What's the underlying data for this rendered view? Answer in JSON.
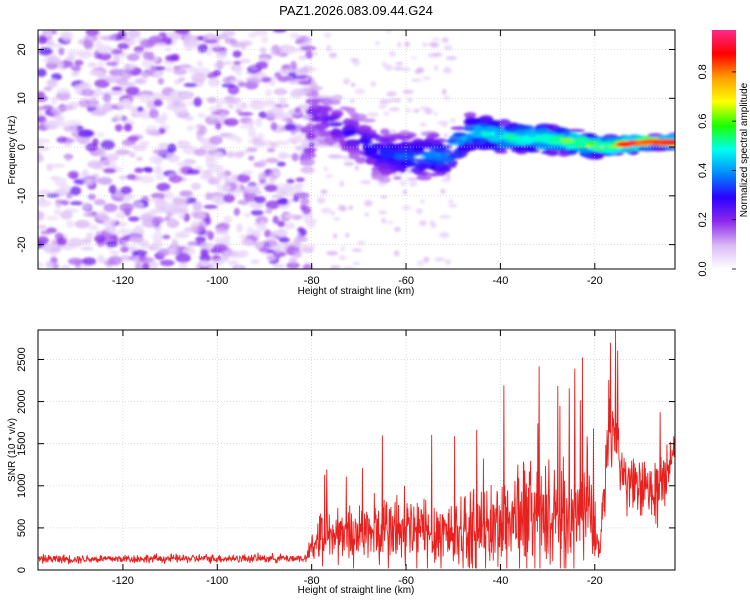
{
  "title": "PAZ1.2026.083.09.44.G24",
  "chart_data": [
    {
      "type": "heatmap",
      "xlabel": "Height of straight line (km)",
      "ylabel": "Frequency (Hz)",
      "xlim": [
        -138,
        -3
      ],
      "ylim": [
        -25,
        24
      ],
      "xticks": [
        -120,
        -100,
        -80,
        -60,
        -40,
        -20
      ],
      "xtick_labels": [
        "-120",
        "-100",
        "-80",
        "-60",
        "-40",
        "-20"
      ],
      "yticks": [
        -20,
        -10,
        0,
        10,
        20
      ],
      "ytick_labels": [
        "-20",
        "-10",
        "0",
        "10",
        "20"
      ],
      "colorbar": {
        "label": "Normalized spectral amplitude",
        "range": [
          0,
          0.97
        ],
        "ticks": [
          0.0,
          0.2,
          0.4,
          0.6,
          0.8
        ],
        "tick_labels": [
          "0.0",
          "0.2",
          "0.4",
          "0.6",
          "0.8"
        ],
        "colormap": [
          "#ffffff",
          "#d9b8f5",
          "#8c28ec",
          "#2a00ff",
          "#008bff",
          "#00ffee",
          "#1bff00",
          "#ffff00",
          "#ff9f00",
          "#ff0000",
          "#ff2a8a"
        ]
      },
      "signal_track": [
        {
          "x": -80,
          "freq": 7
        },
        {
          "x": -74,
          "freq": 4
        },
        {
          "x": -66,
          "freq": -1
        },
        {
          "x": -60,
          "freq": -2
        },
        {
          "x": -52,
          "freq": -2
        },
        {
          "x": -46,
          "freq": 3
        },
        {
          "x": -38,
          "freq": 2
        },
        {
          "x": -28,
          "freq": 1.5
        },
        {
          "x": -18,
          "freq": 0
        },
        {
          "x": -10,
          "freq": 1
        },
        {
          "x": -3,
          "freq": 1
        }
      ]
    },
    {
      "type": "line",
      "xlabel": "Height of straight line (km)",
      "ylabel": "SNR (10 * v/v)",
      "xlim": [
        -138,
        -3
      ],
      "ylim": [
        0,
        2850
      ],
      "xticks": [
        -120,
        -100,
        -80,
        -60,
        -40,
        -20
      ],
      "xtick_labels": [
        "-120",
        "-100",
        "-80",
        "-60",
        "-40",
        "-20"
      ],
      "yticks": [
        0,
        500,
        1000,
        1500,
        2000,
        2500
      ],
      "ytick_labels": [
        "0",
        "500",
        "1000",
        "1500",
        "2000",
        "2500"
      ],
      "line_color": "#e8201e",
      "series_envelope": [
        {
          "x": -138,
          "base": 130,
          "amp": 70
        },
        {
          "x": -81,
          "base": 140,
          "amp": 70
        },
        {
          "x": -79,
          "base": 400,
          "amp": 450
        },
        {
          "x": -70,
          "base": 450,
          "amp": 500
        },
        {
          "x": -62,
          "base": 450,
          "amp": 700
        },
        {
          "x": -54,
          "base": 450,
          "amp": 650
        },
        {
          "x": -44,
          "base": 450,
          "amp": 650
        },
        {
          "x": -36,
          "base": 650,
          "amp": 1000
        },
        {
          "x": -28,
          "base": 600,
          "amp": 800
        },
        {
          "x": -21,
          "base": 700,
          "amp": 1000
        },
        {
          "x": -19,
          "base": 200,
          "amp": 100
        },
        {
          "x": -17,
          "base": 1700,
          "amp": 900
        },
        {
          "x": -13,
          "base": 1000,
          "amp": 450
        },
        {
          "x": -7,
          "base": 900,
          "amp": 600
        },
        {
          "x": -3,
          "base": 1450,
          "amp": 250
        }
      ]
    }
  ]
}
